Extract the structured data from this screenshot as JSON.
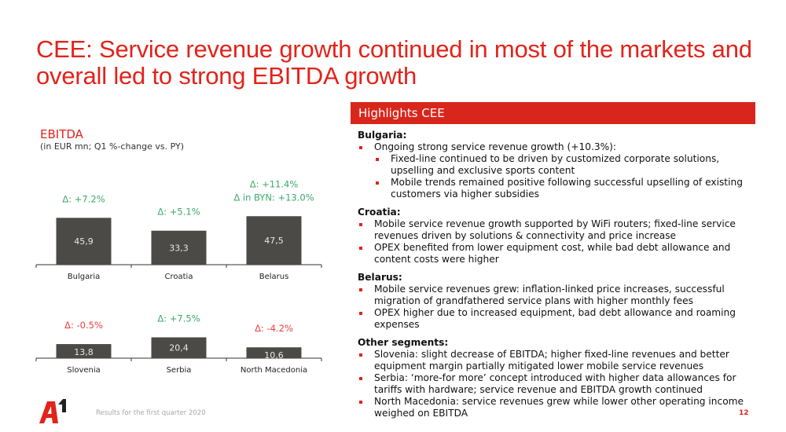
{
  "title": "CEE: Service revenue growth continued in most of the markets and overall led to strong EBITDA growth",
  "chart_data": {
    "type": "bar",
    "title": "EBITDA",
    "subtitle": "(in EUR mn; Q1 %-change vs. PY)",
    "unit": "EUR mn",
    "panels": [
      {
        "categories": [
          "Bulgaria",
          "Croatia",
          "Belarus"
        ],
        "values": [
          45.9,
          33.3,
          47.5
        ],
        "value_labels": [
          "45,9",
          "33,3",
          "47,5"
        ],
        "annotations": [
          [
            "Δ: +7.2%"
          ],
          [
            "Δ: +5.1%"
          ],
          [
            "Δ: +11.4%",
            "Δ in BYN: +13.0%"
          ]
        ],
        "annotation_colors": [
          "#3aa96a",
          "#3aa96a",
          "#3aa96a"
        ]
      },
      {
        "categories": [
          "Slovenia",
          "Serbia",
          "North Macedonia"
        ],
        "values": [
          13.8,
          20.4,
          10.6
        ],
        "value_labels": [
          "13,8",
          "20,4",
          "10,6"
        ],
        "annotations": [
          [
            "Δ: -0.5%"
          ],
          [
            "Δ: +7.5%"
          ],
          [
            "Δ: -4.2%"
          ]
        ],
        "annotation_colors": [
          "#ef3b3b",
          "#3aa96a",
          "#ef3b3b"
        ]
      }
    ],
    "bar_color": "#4b4a46",
    "xlabel": "",
    "ylabel": ""
  },
  "highlights": {
    "header": "Highlights CEE",
    "sections": [
      {
        "title": "Bulgaria:",
        "items": [
          {
            "text": "Ongoing strong service revenue growth (+10.3%):",
            "sub": [
              "Fixed-line continued to be driven by customized corporate solutions, upselling and exclusive sports content",
              "Mobile trends remained positive following successful upselling of existing customers via higher subsidies"
            ]
          }
        ]
      },
      {
        "title": "Croatia:",
        "items": [
          {
            "text": "Mobile service revenue growth supported by WiFi routers; fixed-line service revenues driven by solutions & connectivity and price increase"
          },
          {
            "text": "OPEX benefited from lower equipment cost, while bad debt allowance and content costs were higher"
          }
        ]
      },
      {
        "title": "Belarus:",
        "items": [
          {
            "text": "Mobile service revenues grew: inflation-linked price increases, successful migration of grandfathered service plans with higher monthly fees"
          },
          {
            "text": "OPEX higher due to increased equipment, bad debt allowance and roaming expenses"
          }
        ]
      },
      {
        "title": "Other segments:",
        "items": [
          {
            "text": "Slovenia: slight decrease of EBITDA; higher fixed-line revenues and better equipment margin partially mitigated lower mobile service revenues"
          },
          {
            "text": "Serbia: ‘more-for more’ concept introduced with higher data allowances for tariffs with hardware; service revenue and EBITDA growth continued"
          },
          {
            "text": "North Macedonia: service revenues grew while lower other operating income weighed on EBITDA"
          }
        ]
      }
    ]
  },
  "footer": {
    "text": "Results for the first quarter 2020",
    "page_number": "12",
    "logo_text": "A1"
  }
}
